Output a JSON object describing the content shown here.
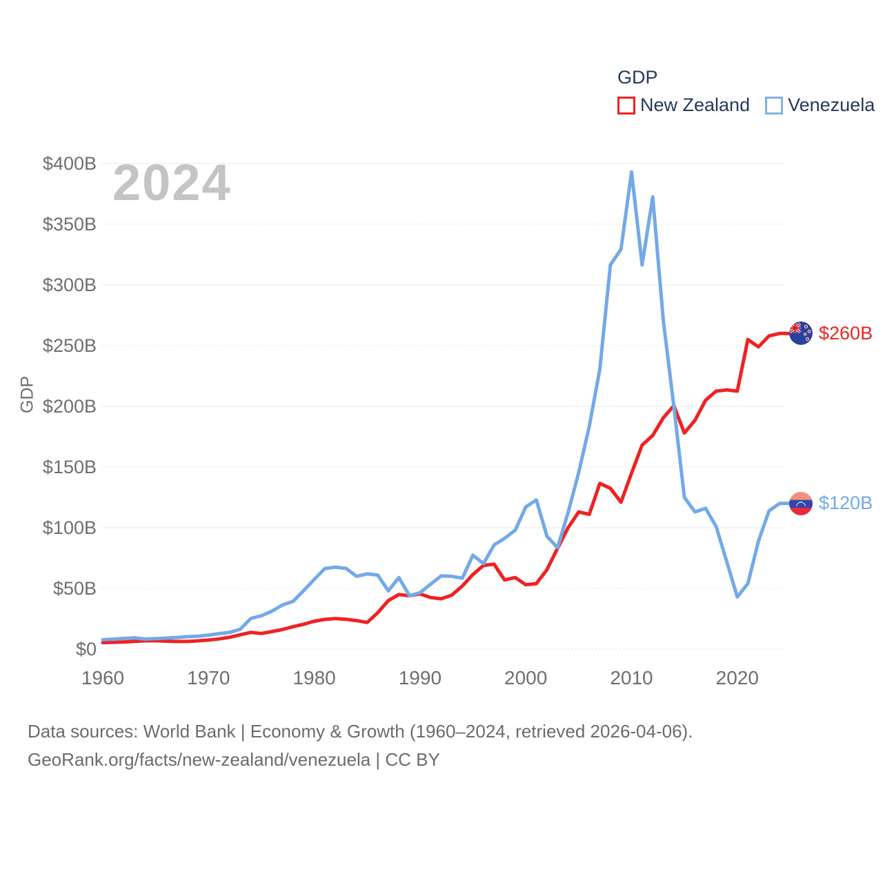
{
  "watermark": "2024",
  "y_axis_title": "GDP",
  "legend": {
    "title": "GDP",
    "items": [
      {
        "label": "New Zealand",
        "color": "#ee2222"
      },
      {
        "label": "Venezuela",
        "color": "#7fb2e5"
      }
    ]
  },
  "footer": {
    "line1": "Data sources: World Bank | Economy & Growth (1960–2024, retrieved 2026-04-06).",
    "line2": "GeoRank.org/facts/new-zealand/venezuela | CC BY"
  },
  "chart_data": {
    "type": "line",
    "title": "GDP",
    "xlabel": "",
    "ylabel": "GDP",
    "xlim": [
      1960,
      2024
    ],
    "ylim": [
      0,
      400
    ],
    "grid": "horizontal",
    "legend_position": "top-right",
    "x": [
      1960,
      1961,
      1962,
      1963,
      1964,
      1965,
      1966,
      1967,
      1968,
      1969,
      1970,
      1971,
      1972,
      1973,
      1974,
      1975,
      1976,
      1977,
      1978,
      1979,
      1980,
      1981,
      1982,
      1983,
      1984,
      1985,
      1986,
      1987,
      1988,
      1989,
      1990,
      1991,
      1992,
      1993,
      1994,
      1995,
      1996,
      1997,
      1998,
      1999,
      2000,
      2001,
      2002,
      2003,
      2004,
      2005,
      2006,
      2007,
      2008,
      2009,
      2010,
      2011,
      2012,
      2013,
      2014,
      2015,
      2016,
      2017,
      2018,
      2019,
      2020,
      2021,
      2022,
      2023,
      2024
    ],
    "xticks": [
      1960,
      1970,
      1980,
      1990,
      2000,
      2010,
      2020
    ],
    "yticks": [
      {
        "label": "$400B",
        "value": 400
      },
      {
        "label": "$350B",
        "value": 350
      },
      {
        "label": "$300B",
        "value": 300
      },
      {
        "label": "$250B",
        "value": 250
      },
      {
        "label": "$200B",
        "value": 200
      },
      {
        "label": "$150B",
        "value": 150
      },
      {
        "label": "$100B",
        "value": 100
      },
      {
        "label": "$50B",
        "value": 50
      },
      {
        "label": "$0",
        "value": 0
      }
    ],
    "series": [
      {
        "name": "New Zealand",
        "color": "#ee2222",
        "flag": "nz",
        "end_label": "$260B",
        "values": [
          5.4,
          5.6,
          5.9,
          6.4,
          6.9,
          7.0,
          6.6,
          6.3,
          6.3,
          6.8,
          7.5,
          8.4,
          9.8,
          11.8,
          13.8,
          12.9,
          14.5,
          16.2,
          18.5,
          20.5,
          23.0,
          24.5,
          25.2,
          24.6,
          23.5,
          22.0,
          30.0,
          40.0,
          45.0,
          44.0,
          45.5,
          42.5,
          41.5,
          44.5,
          52.0,
          61.5,
          69.0,
          70.0,
          57.0,
          59.0,
          53.0,
          54.0,
          65.5,
          83.0,
          100.0,
          113.0,
          111.0,
          136.5,
          132.5,
          121.0,
          145.0,
          168.0,
          176.0,
          190.5,
          200.5,
          178.0,
          188.5,
          205.0,
          212.5,
          213.5,
          212.5,
          255.0,
          249.0,
          258.0,
          260.0
        ]
      },
      {
        "name": "Venezuela",
        "color": "#73a9e6",
        "flag": "ve",
        "end_label": "$120B",
        "values": [
          7.8,
          8.2,
          8.8,
          9.3,
          8.3,
          8.7,
          9.1,
          9.6,
          10.2,
          10.6,
          11.6,
          12.8,
          13.8,
          16.4,
          25.3,
          27.5,
          31.3,
          36.4,
          39.4,
          48.3,
          57.5,
          66.4,
          67.5,
          66.5,
          60.0,
          62.0,
          61.0,
          48.0,
          59.0,
          44.0,
          46.5,
          53.5,
          60.4,
          60.0,
          58.4,
          77.4,
          70.5,
          85.8,
          91.3,
          98.0,
          117.1,
          122.9,
          92.9,
          83.6,
          112.5,
          145.5,
          183.5,
          230.4,
          316.5,
          329.4,
          393.0,
          316.5,
          372.5,
          271.0,
          200.0,
          125.0,
          113.0,
          116.0,
          101.0,
          72.0,
          43.0,
          54.0,
          89.0,
          114.0,
          120.0
        ]
      }
    ]
  }
}
